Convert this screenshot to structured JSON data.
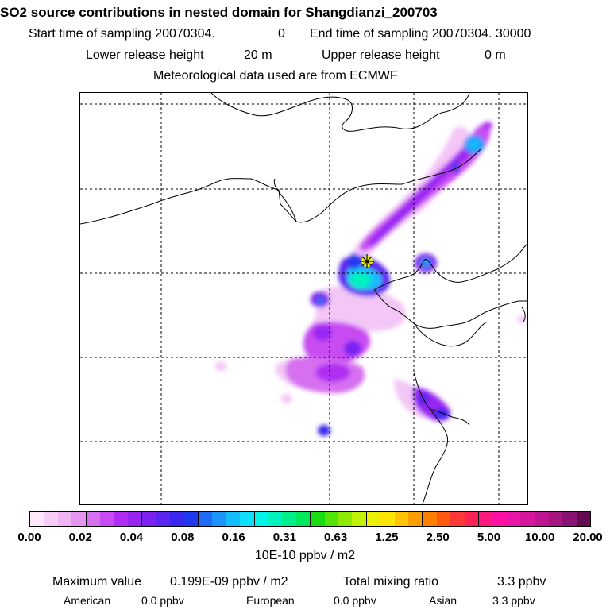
{
  "header": {
    "title": "SO2 source contributions in nested domain for Shangdianzi_200703",
    "start_label": "Start time of sampling 20070304.",
    "start_hour": "0",
    "end_label": "End time of sampling 20070304. 30000",
    "lower_label": "Lower release height",
    "lower_value": "20 m",
    "upper_label": "Upper release height",
    "upper_value": "0 m",
    "met_line": "Meteorological data used are from ECMWF"
  },
  "colors": {
    "swatches": [
      "#fde8fc",
      "#f6cdf7",
      "#eeb4f3",
      "#e496f0",
      "#d66ff0",
      "#c84cf2",
      "#b02ef2",
      "#9925f2",
      "#7b22f0",
      "#5c26f0",
      "#3a26ee",
      "#2038f0",
      "#1e6cf5",
      "#1d94fa",
      "#14bdfc",
      "#0ce0fa",
      "#00f5e8",
      "#00f2bf",
      "#00ef8e",
      "#00e85c",
      "#18dd12",
      "#54e208",
      "#8eea00",
      "#c3f200",
      "#eaf000",
      "#fee500",
      "#ffc400",
      "#ff9e00",
      "#ff7e00",
      "#ff5a10",
      "#ff3838",
      "#ff2255",
      "#ff1a80",
      "#ff10a4",
      "#ea16a8",
      "#d6169c",
      "#be1690",
      "#a51680",
      "#881270",
      "#620c52"
    ],
    "coast": "#000000",
    "grid": "#000000",
    "marker": "#000000"
  },
  "chart_data": {
    "type": "heatmap",
    "title": "SO2 source contributions in nested domain for Shangdianzi_200703",
    "colorbar_ticks": [
      "0.00",
      "0.02",
      "0.04",
      "0.08",
      "0.16",
      "0.31",
      "0.63",
      "1.25",
      "2.50",
      "5.00",
      "10.00",
      "20.00"
    ],
    "colorbar_unit": "10E-10 ppbv / m2",
    "levels_per_interval": 4,
    "receptor": "Shangdianzi",
    "grid": "on",
    "blobs": [
      {
        "name": "northeast-plume-top",
        "level": 1,
        "cx": 0.86,
        "cy": 0.12,
        "rx": 0.03,
        "ry": 0.06
      },
      {
        "name": "northeast-plume-mid",
        "level": 3,
        "cx": 0.86,
        "cy": 0.12,
        "rx": 0.02,
        "ry": 0.03
      },
      {
        "name": "northeast-hotspot",
        "level": 4,
        "cx": 0.88,
        "cy": 0.12,
        "rx": 0.015,
        "ry": 0.015
      },
      {
        "name": "receptor-plume",
        "level": 4,
        "cx": 0.63,
        "cy": 0.42,
        "rx": 0.05,
        "ry": 0.03
      },
      {
        "name": "south-plain",
        "level": 2,
        "cx": 0.62,
        "cy": 0.63,
        "rx": 0.12,
        "ry": 0.05
      },
      {
        "name": "coastal-east",
        "level": 3,
        "cx": 0.81,
        "cy": 0.77,
        "rx": 0.04,
        "ry": 0.03
      }
    ]
  },
  "stats": {
    "max_label": "Maximum value",
    "max_value": "0.199E-09 ppbv / m2",
    "total_label": "Total mixing ratio",
    "total_value": "3.3 ppbv",
    "sources": [
      {
        "name": "American",
        "value": "0.0 ppbv"
      },
      {
        "name": "European",
        "value": "0.0 ppbv"
      },
      {
        "name": "Asian",
        "value": "3.3 ppbv"
      }
    ]
  }
}
